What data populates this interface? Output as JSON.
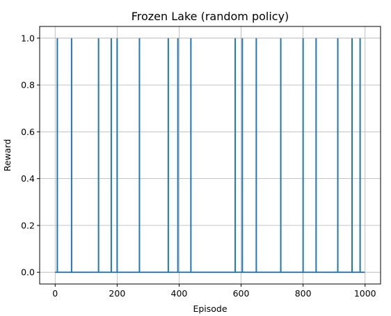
{
  "chart_data": {
    "type": "line",
    "title": "Frozen Lake (random policy)",
    "xlabel": "Episode",
    "ylabel": "Reward",
    "xlim": [
      -50,
      1050
    ],
    "ylim": [
      -0.05,
      1.05
    ],
    "xticks": [
      0,
      200,
      400,
      600,
      800,
      1000
    ],
    "yticks": [
      0.0,
      0.2,
      0.4,
      0.6,
      0.8,
      1.0
    ],
    "xtick_labels": [
      "0",
      "200",
      "400",
      "600",
      "800",
      "1000"
    ],
    "ytick_labels": [
      "0.0",
      "0.2",
      "0.4",
      "0.6",
      "0.8",
      "1.0"
    ],
    "grid": true,
    "series": [
      {
        "color": "#1f77b4",
        "x_range": [
          0,
          999
        ],
        "baseline": 0,
        "reward_episodes": [
          7,
          53,
          140,
          181,
          200,
          272,
          365,
          396,
          438,
          581,
          604,
          649,
          728,
          800,
          842,
          912,
          958,
          984
        ],
        "reward_value": 1
      }
    ]
  }
}
